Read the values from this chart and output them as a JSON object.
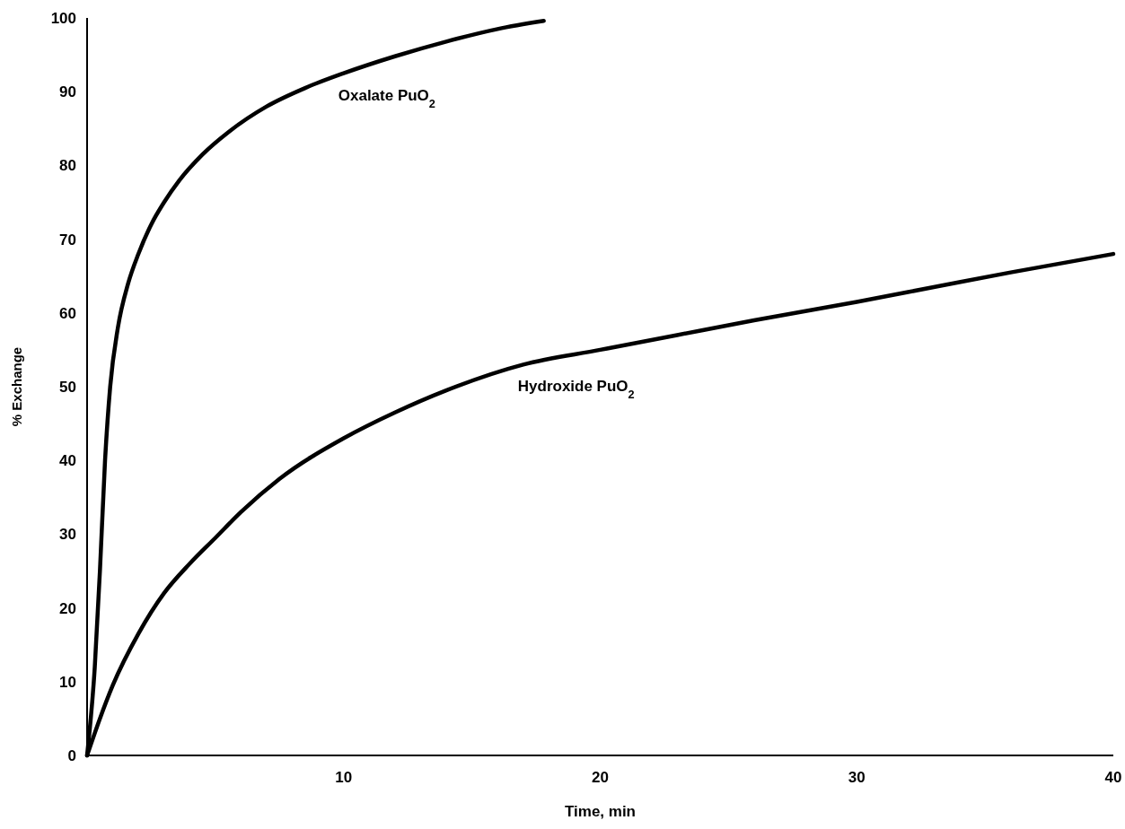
{
  "chart_data": {
    "type": "line",
    "xlabel": "Time, min",
    "ylabel": "% Exchange",
    "xlim": [
      0,
      40
    ],
    "xticks": [
      10,
      20,
      30,
      40
    ],
    "ylim": [
      0,
      100
    ],
    "yticks": [
      0,
      10,
      20,
      30,
      40,
      50,
      60,
      70,
      80,
      90,
      100
    ],
    "grid": false,
    "marker": "none",
    "line_style": "solid",
    "series": [
      {
        "name": "Oxalate PuO$_{2}$",
        "color": "#000000",
        "x": [
          0,
          0.3,
          0.5,
          0.7,
          0.9,
          1.2,
          1.6,
          2,
          2.5,
          3,
          3.6,
          4.5,
          5.5,
          7,
          8.5,
          10,
          12,
          14,
          16,
          17.8
        ],
        "values": [
          0,
          12,
          25,
          40,
          50,
          58,
          64,
          68,
          72,
          75,
          78,
          81.5,
          84.5,
          88,
          90.5,
          92.5,
          94.8,
          96.8,
          98.5,
          99.6
        ]
      },
      {
        "name": "Hydroxide PuO$_{2}$",
        "color": "#000000",
        "x": [
          0,
          0.5,
          1,
          2,
          3,
          4,
          5,
          6,
          7.5,
          10,
          12,
          14,
          17,
          20,
          23,
          26,
          30,
          33,
          36,
          40
        ],
        "values": [
          0,
          5,
          9.5,
          16.5,
          22,
          26,
          29.5,
          33,
          37.5,
          43,
          46.5,
          49.5,
          53,
          55,
          57,
          59,
          61.5,
          63.5,
          65.5,
          68
        ]
      }
    ]
  }
}
